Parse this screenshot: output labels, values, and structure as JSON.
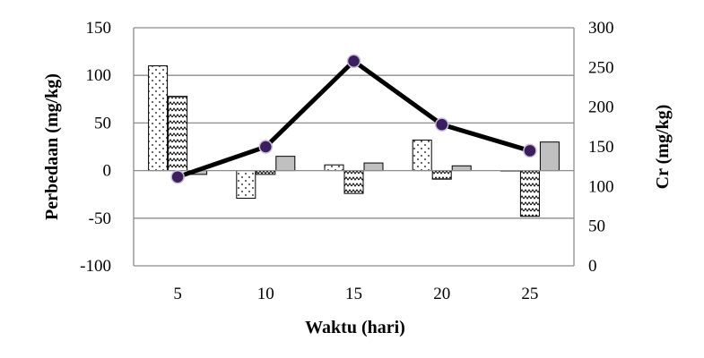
{
  "chart_data": {
    "type": "bar",
    "title": "",
    "xlabel": "Waktu (hari)",
    "ylabel": "Perbedaan (mg/kg)",
    "y2label": "Cr (mg/kg)",
    "categories": [
      "5",
      "10",
      "15",
      "20",
      "25"
    ],
    "ylim": [
      -100,
      150
    ],
    "yticks": [
      -100,
      -50,
      0,
      50,
      100,
      150
    ],
    "y2lim": [
      0,
      300
    ],
    "y2ticks": [
      0,
      50,
      100,
      150,
      200,
      250,
      300
    ],
    "grid": true,
    "legend": "none",
    "series": [
      {
        "kind": "bar",
        "pattern": "dots",
        "values": [
          110,
          -29,
          6,
          32,
          0
        ]
      },
      {
        "kind": "bar",
        "pattern": "zigzag",
        "values": [
          78,
          -4,
          -24,
          -9,
          -48
        ]
      },
      {
        "kind": "bar",
        "pattern": "grey",
        "values": [
          -4,
          15,
          8,
          5,
          30
        ]
      },
      {
        "kind": "line",
        "axis": "right",
        "values": [
          112,
          150,
          258,
          178,
          145
        ]
      }
    ],
    "colors": {
      "line": "#000000",
      "marker": "#3a1f5c",
      "grey_bar": "#c0c0c0",
      "grid": "#8c8c8c"
    }
  }
}
